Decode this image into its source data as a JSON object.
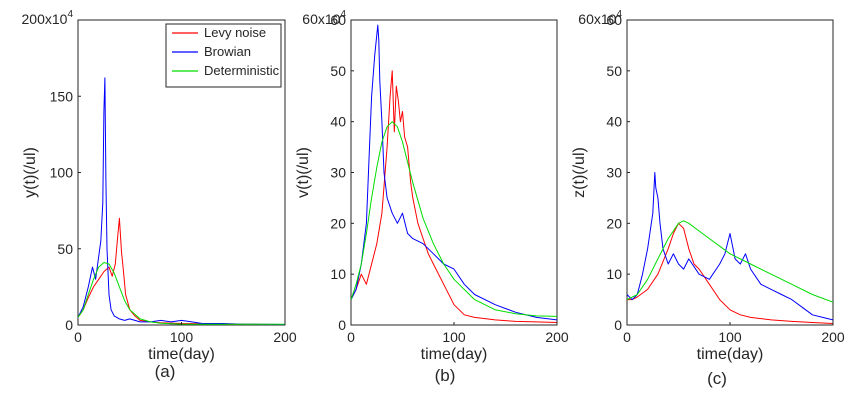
{
  "chart_data": [
    {
      "type": "line",
      "panel_label": "(a)",
      "xlabel": "time(day)",
      "ylabel": "y(t)(/ul)",
      "xlim": [
        0,
        200
      ],
      "ylim": [
        0,
        200
      ],
      "y_multiplier_label": "x10",
      "y_multiplier_exp": "4",
      "xticks": [
        0,
        100,
        200
      ],
      "yticks": [
        0,
        50,
        100,
        150
      ],
      "legend": {
        "placement": "top-right",
        "entries": [
          "Levy noise",
          "Browian",
          "Deterministic"
        ]
      },
      "series": [
        {
          "name": "Levy noise",
          "color": "#ff0000",
          "x": [
            0,
            5,
            10,
            15,
            20,
            25,
            30,
            33,
            36,
            38,
            40,
            42,
            44,
            46,
            50,
            55,
            60,
            70,
            80,
            100,
            120,
            150,
            200
          ],
          "y": [
            5,
            10,
            18,
            25,
            30,
            35,
            38,
            32,
            40,
            55,
            70,
            48,
            35,
            20,
            10,
            6,
            3,
            2,
            1.5,
            1,
            0.8,
            0.5,
            0.3
          ]
        },
        {
          "name": "Browian",
          "color": "#0000ff",
          "x": [
            0,
            5,
            10,
            14,
            17,
            20,
            22,
            24,
            25,
            26,
            27,
            28,
            30,
            32,
            35,
            40,
            45,
            50,
            60,
            70,
            80,
            90,
            100,
            110,
            120,
            140,
            160,
            200
          ],
          "y": [
            5,
            12,
            25,
            38,
            30,
            45,
            55,
            80,
            140,
            162,
            95,
            50,
            20,
            10,
            6,
            4,
            3,
            4,
            2,
            2,
            3,
            2,
            3,
            2,
            1,
            1,
            0.5,
            0.3
          ]
        },
        {
          "name": "Deterministic",
          "color": "#00dd00",
          "x": [
            0,
            5,
            10,
            15,
            20,
            25,
            30,
            35,
            40,
            45,
            50,
            60,
            70,
            80,
            100,
            120,
            150,
            200
          ],
          "y": [
            5,
            10,
            20,
            30,
            38,
            41,
            40,
            34,
            25,
            16,
            10,
            4,
            2,
            1.2,
            0.6,
            0.5,
            0.5,
            0.5
          ]
        }
      ]
    },
    {
      "type": "line",
      "panel_label": "(b)",
      "xlabel": "time(day)",
      "ylabel": "v(t)(/ul)",
      "xlim": [
        0,
        200
      ],
      "ylim": [
        0,
        60
      ],
      "y_multiplier_label": "x10",
      "y_multiplier_exp": "4",
      "xticks": [
        0,
        100,
        200
      ],
      "yticks": [
        0,
        10,
        20,
        30,
        40,
        50,
        60
      ],
      "series": [
        {
          "name": "Levy noise",
          "color": "#ff0000",
          "x": [
            0,
            5,
            10,
            15,
            20,
            25,
            30,
            35,
            38,
            40,
            42,
            44,
            46,
            48,
            50,
            52,
            55,
            58,
            60,
            65,
            70,
            75,
            80,
            90,
            100,
            110,
            120,
            140,
            160,
            180,
            200
          ],
          "y": [
            5,
            7,
            10,
            8,
            12,
            16,
            22,
            35,
            45,
            50,
            38,
            47,
            44,
            40,
            42,
            37,
            35,
            28,
            25,
            20,
            17,
            14,
            12,
            8,
            4,
            2,
            1.5,
            1,
            0.7,
            0.6,
            0.5
          ]
        },
        {
          "name": "Browian",
          "color": "#0000ff",
          "x": [
            0,
            5,
            10,
            15,
            18,
            20,
            23,
            26,
            27,
            28,
            30,
            32,
            35,
            40,
            45,
            50,
            55,
            60,
            70,
            80,
            90,
            100,
            110,
            120,
            140,
            160,
            180,
            200
          ],
          "y": [
            5,
            7,
            12,
            20,
            35,
            45,
            53,
            59,
            56,
            48,
            40,
            30,
            25,
            22,
            20,
            22,
            18,
            17,
            16,
            14,
            12,
            11,
            8,
            6,
            4,
            2.5,
            1.5,
            1
          ]
        },
        {
          "name": "Deterministic",
          "color": "#00dd00",
          "x": [
            0,
            5,
            10,
            15,
            20,
            25,
            30,
            35,
            40,
            45,
            50,
            60,
            70,
            80,
            90,
            100,
            120,
            140,
            160,
            180,
            200
          ],
          "y": [
            5,
            8,
            12,
            18,
            25,
            31,
            36,
            39,
            40,
            39,
            36,
            28,
            21,
            16,
            12,
            9,
            5,
            3,
            2.2,
            1.8,
            1.7
          ]
        }
      ]
    },
    {
      "type": "line",
      "panel_label": "(c)",
      "xlabel": "time(day)",
      "ylabel": "z(t)(/ul)",
      "xlim": [
        0,
        200
      ],
      "ylim": [
        0,
        60
      ],
      "y_multiplier_label": "x10",
      "y_multiplier_exp": "4",
      "xticks": [
        0,
        100,
        200
      ],
      "yticks": [
        0,
        10,
        20,
        30,
        40,
        50,
        60
      ],
      "series": [
        {
          "name": "Levy noise",
          "color": "#ff0000",
          "x": [
            0,
            5,
            10,
            20,
            30,
            40,
            45,
            50,
            55,
            60,
            65,
            70,
            80,
            90,
            100,
            110,
            120,
            140,
            160,
            180,
            200
          ],
          "y": [
            5,
            5,
            5.5,
            7,
            10,
            15,
            18,
            20,
            19,
            15,
            12,
            11,
            8,
            5,
            3,
            2,
            1.5,
            1,
            0.7,
            0.5,
            0.3
          ]
        },
        {
          "name": "Browian",
          "color": "#0000ff",
          "x": [
            0,
            5,
            10,
            15,
            20,
            25,
            27,
            28,
            30,
            32,
            35,
            40,
            45,
            50,
            55,
            60,
            70,
            80,
            90,
            95,
            100,
            103,
            105,
            110,
            115,
            120,
            130,
            140,
            150,
            160,
            170,
            180,
            190,
            200
          ],
          "y": [
            6,
            5,
            6,
            10,
            15,
            22,
            30,
            27,
            25,
            20,
            15,
            12,
            14,
            12,
            11,
            13,
            10,
            9,
            12,
            14,
            18,
            15,
            13,
            12,
            14,
            11,
            8,
            7,
            6,
            5,
            3.5,
            2,
            1.5,
            1
          ]
        },
        {
          "name": "Deterministic",
          "color": "#00dd00",
          "x": [
            0,
            10,
            20,
            30,
            40,
            50,
            55,
            60,
            70,
            80,
            90,
            100,
            120,
            140,
            160,
            180,
            200
          ],
          "y": [
            5,
            6,
            9,
            13,
            17,
            20,
            20.5,
            20,
            18.5,
            17,
            15.5,
            14,
            12,
            10,
            8,
            6,
            4.5
          ]
        }
      ]
    }
  ]
}
